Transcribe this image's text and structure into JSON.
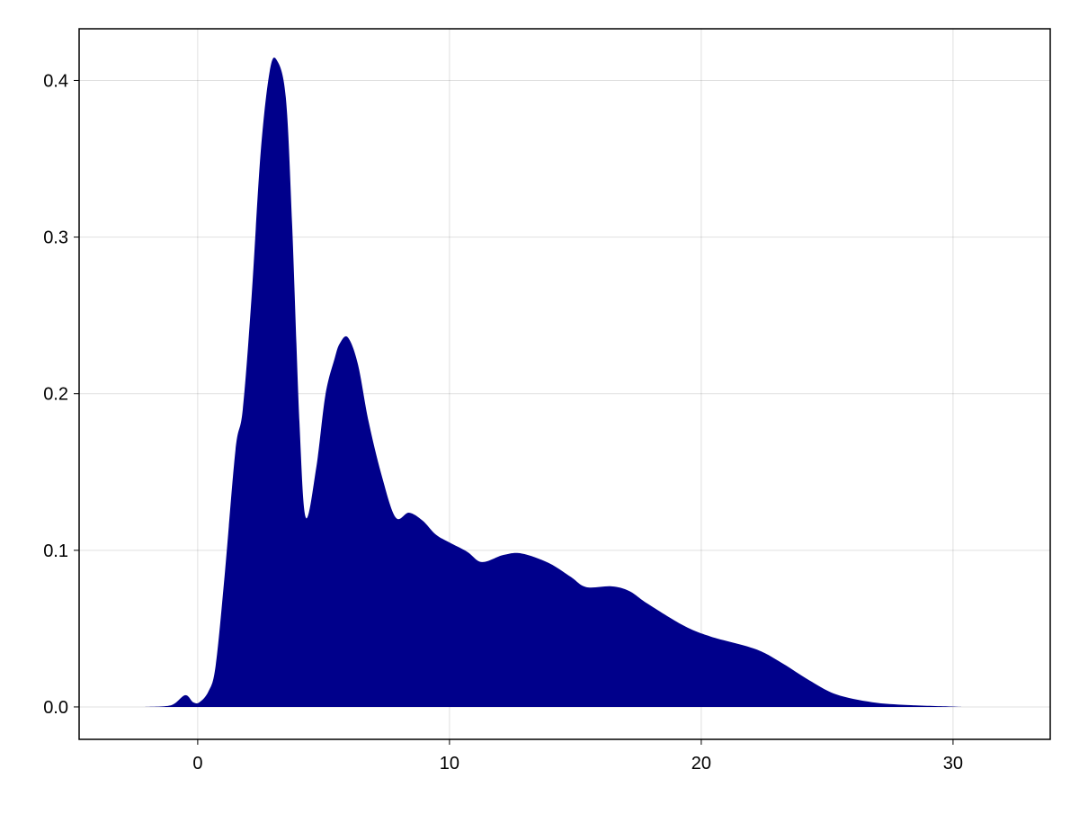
{
  "chart_data": {
    "type": "area",
    "title": "",
    "xlabel": "",
    "ylabel": "",
    "xlim": [
      -4.71,
      33.86
    ],
    "ylim": [
      -0.0207,
      0.433
    ],
    "grid": true,
    "fill_color": "#00008B",
    "x_ticks": [
      0,
      10,
      20,
      30
    ],
    "x_tick_labels": [
      "0",
      "10",
      "20",
      "30"
    ],
    "y_ticks": [
      0.0,
      0.1,
      0.2,
      0.3,
      0.4
    ],
    "y_tick_labels": [
      "0.0",
      "0.1",
      "0.2",
      "0.3",
      "0.4"
    ],
    "x": [
      -2.14,
      -1.07,
      -0.5,
      -0.18,
      0.07,
      0.43,
      0.71,
      1.07,
      1.5,
      1.79,
      2.14,
      2.5,
      2.86,
      3.14,
      3.5,
      3.75,
      4.04,
      4.29,
      4.71,
      5.07,
      5.43,
      5.64,
      5.96,
      6.36,
      6.79,
      7.32,
      7.86,
      8.39,
      8.93,
      9.46,
      10.0,
      10.71,
      11.29,
      12.14,
      12.86,
      13.93,
      14.82,
      15.43,
      16.43,
      17.14,
      17.86,
      19.29,
      20.36,
      22.14,
      23.21,
      24.29,
      25.36,
      26.79,
      28.21,
      30.0,
      30.36
    ],
    "y": [
      0,
      0.001,
      0.0075,
      0.003,
      0.003,
      0.01,
      0.026,
      0.084,
      0.164,
      0.19,
      0.262,
      0.354,
      0.406,
      0.413,
      0.389,
      0.308,
      0.182,
      0.121,
      0.153,
      0.199,
      0.222,
      0.232,
      0.236,
      0.219,
      0.182,
      0.147,
      0.121,
      0.124,
      0.119,
      0.11,
      0.105,
      0.099,
      0.0925,
      0.097,
      0.098,
      0.092,
      0.083,
      0.0765,
      0.077,
      0.074,
      0.066,
      0.052,
      0.045,
      0.037,
      0.028,
      0.017,
      0.008,
      0.003,
      0.0012,
      0.0002,
      0
    ]
  }
}
